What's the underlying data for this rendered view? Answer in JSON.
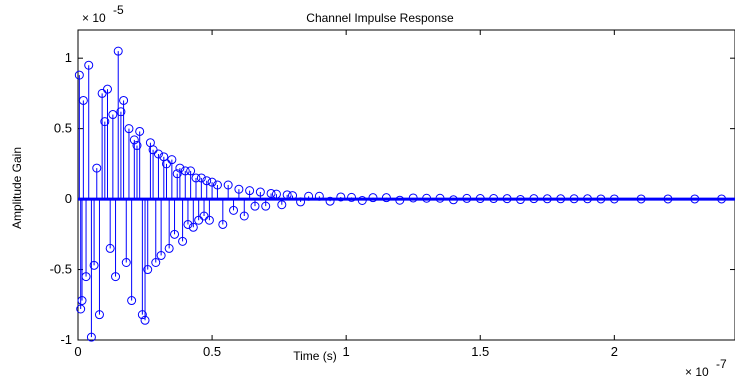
{
  "chart_data": {
    "type": "stem",
    "title": "Channel Impulse Response",
    "xlabel": "Time (s)",
    "ylabel": "Amplitude Gain",
    "x_multiplier_label": "× 10",
    "x_multiplier_exp": "-7",
    "y_multiplier_label": "× 10",
    "y_multiplier_exp": "-5",
    "xlim": [
      0,
      2.45
    ],
    "ylim": [
      -1,
      1.2
    ],
    "x_ticks": [
      0,
      0.5,
      1,
      1.5,
      2
    ],
    "x_tick_labels": [
      "0",
      "0.5",
      "1",
      "1.5",
      "2"
    ],
    "y_ticks": [
      -1,
      -0.5,
      0,
      0.5,
      1
    ],
    "y_tick_labels": [
      "-1",
      "-0.5",
      "0",
      "0.5",
      "1"
    ],
    "x_units_scale": "1e-7 s",
    "y_units_scale": "1e-5",
    "color": "#0000ff",
    "series": [
      {
        "x": [
          0.005,
          0.01,
          0.015,
          0.02,
          0.03,
          0.04,
          0.05,
          0.06,
          0.07,
          0.08,
          0.09,
          0.1,
          0.11,
          0.12,
          0.13,
          0.14,
          0.15,
          0.16,
          0.17,
          0.18,
          0.19,
          0.2,
          0.21,
          0.22,
          0.23,
          0.24,
          0.25,
          0.26,
          0.27,
          0.28,
          0.29,
          0.3,
          0.31,
          0.32,
          0.33,
          0.34,
          0.35,
          0.36,
          0.37,
          0.38,
          0.39,
          0.4,
          0.41,
          0.42,
          0.43,
          0.44,
          0.45,
          0.46,
          0.47,
          0.48,
          0.49,
          0.5,
          0.52,
          0.54,
          0.56,
          0.58,
          0.6,
          0.62,
          0.64,
          0.66,
          0.68,
          0.7,
          0.72,
          0.74,
          0.76,
          0.78,
          0.8,
          0.83,
          0.86,
          0.9,
          0.94,
          0.98,
          1.02,
          1.06,
          1.1,
          1.15,
          1.2,
          1.25,
          1.3,
          1.35,
          1.4,
          1.45,
          1.5,
          1.55,
          1.6,
          1.65,
          1.7,
          1.75,
          1.8,
          1.85,
          1.9,
          1.95,
          2.0,
          2.1,
          2.2,
          2.3,
          2.4
        ],
        "y": [
          0.88,
          -0.78,
          -0.72,
          0.7,
          -0.55,
          0.95,
          -0.98,
          -0.47,
          0.22,
          -0.82,
          0.75,
          0.55,
          0.78,
          -0.35,
          0.6,
          -0.55,
          1.05,
          0.62,
          0.7,
          -0.45,
          0.5,
          -0.72,
          0.42,
          0.38,
          0.48,
          -0.82,
          -0.86,
          -0.5,
          0.4,
          0.35,
          -0.45,
          0.32,
          -0.4,
          0.3,
          0.25,
          -0.35,
          0.28,
          -0.25,
          0.18,
          0.22,
          -0.3,
          0.2,
          -0.18,
          0.2,
          -0.2,
          0.15,
          -0.15,
          0.15,
          -0.12,
          0.13,
          -0.15,
          0.12,
          0.1,
          -0.18,
          0.1,
          -0.08,
          0.07,
          -0.12,
          0.06,
          -0.05,
          0.05,
          -0.05,
          0.04,
          0.035,
          -0.04,
          0.03,
          0.025,
          -0.02,
          0.02,
          0.02,
          -0.015,
          0.015,
          0.012,
          -0.01,
          0.01,
          0.01,
          -0.008,
          0.008,
          0.006,
          0.006,
          -0.005,
          0.005,
          0.004,
          0.004,
          0.003,
          -0.003,
          0.003,
          0.002,
          0.002,
          0.002,
          0.002,
          0.001,
          0.001,
          0.001,
          0.001,
          0.001,
          0.001
        ]
      }
    ]
  }
}
